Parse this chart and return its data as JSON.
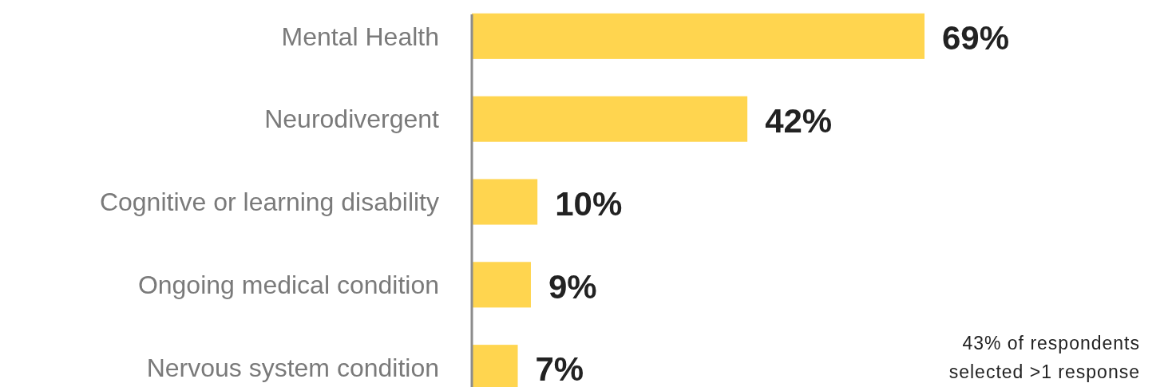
{
  "chart_data": {
    "type": "bar",
    "orientation": "horizontal",
    "categories": [
      "Mental Health",
      "Neurodivergent",
      "Cognitive or learning disability",
      "Ongoing medical condition",
      "Nervous system condition"
    ],
    "values": [
      69,
      42,
      10,
      9,
      7
    ],
    "value_labels": [
      "69%",
      "42%",
      "10%",
      "9%",
      "7%"
    ],
    "color": "#ffd54f",
    "annotations": [
      "43% of respondents selected >1 response"
    ]
  }
}
